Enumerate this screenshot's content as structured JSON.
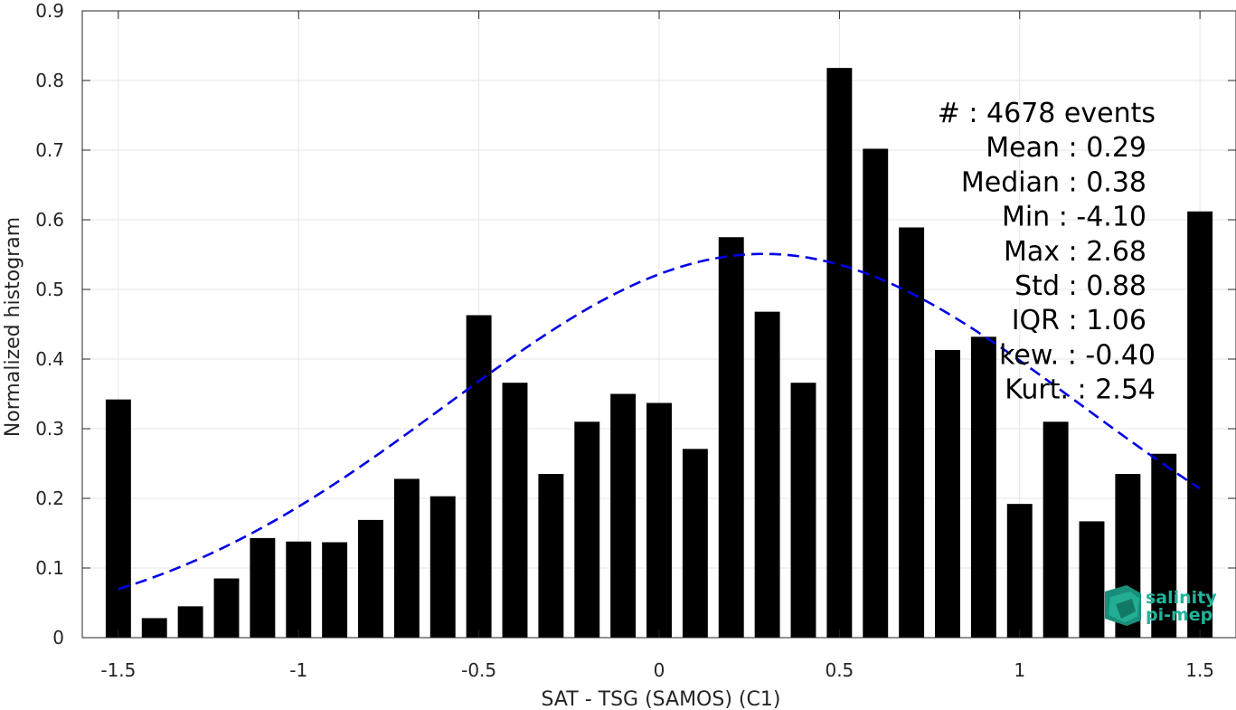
{
  "chart_data": {
    "type": "bar",
    "title": "",
    "xlabel": "SAT - TSG (SAMOS) (C1)",
    "ylabel": "Normalized histogram",
    "xlim": [
      -1.6,
      1.6
    ],
    "ylim": [
      0,
      0.9
    ],
    "x_ticks": [
      -1.5,
      -1,
      -0.5,
      0,
      0.5,
      1,
      1.5
    ],
    "x_tick_labels": [
      "-1.5",
      "-1",
      "-0.5",
      "0",
      "0.5",
      "1",
      "1.5"
    ],
    "y_ticks": [
      0,
      0.1,
      0.2,
      0.3,
      0.4,
      0.5,
      0.6,
      0.7,
      0.8,
      0.9
    ],
    "y_tick_labels": [
      "0",
      "0.1",
      "0.2",
      "0.3",
      "0.4",
      "0.5",
      "0.6",
      "0.7",
      "0.8",
      "0.9"
    ],
    "grid": true,
    "bar_width": 0.07,
    "bar_color": "#000000",
    "bins": [
      {
        "x": -1.5,
        "y": 0.342
      },
      {
        "x": -1.4,
        "y": 0.028
      },
      {
        "x": -1.3,
        "y": 0.045
      },
      {
        "x": -1.2,
        "y": 0.085
      },
      {
        "x": -1.1,
        "y": 0.143
      },
      {
        "x": -1.0,
        "y": 0.138
      },
      {
        "x": -0.9,
        "y": 0.137
      },
      {
        "x": -0.8,
        "y": 0.169
      },
      {
        "x": -0.7,
        "y": 0.228
      },
      {
        "x": -0.6,
        "y": 0.203
      },
      {
        "x": -0.5,
        "y": 0.463
      },
      {
        "x": -0.4,
        "y": 0.366
      },
      {
        "x": -0.3,
        "y": 0.235
      },
      {
        "x": -0.2,
        "y": 0.31
      },
      {
        "x": -0.1,
        "y": 0.35
      },
      {
        "x": 0.0,
        "y": 0.337
      },
      {
        "x": 0.1,
        "y": 0.271
      },
      {
        "x": 0.2,
        "y": 0.575
      },
      {
        "x": 0.3,
        "y": 0.468
      },
      {
        "x": 0.4,
        "y": 0.366
      },
      {
        "x": 0.5,
        "y": 0.818
      },
      {
        "x": 0.6,
        "y": 0.702
      },
      {
        "x": 0.7,
        "y": 0.589
      },
      {
        "x": 0.8,
        "y": 0.413
      },
      {
        "x": 0.9,
        "y": 0.432
      },
      {
        "x": 1.0,
        "y": 0.192
      },
      {
        "x": 1.1,
        "y": 0.31
      },
      {
        "x": 1.2,
        "y": 0.167
      },
      {
        "x": 1.3,
        "y": 0.235
      },
      {
        "x": 1.4,
        "y": 0.264
      },
      {
        "x": 1.5,
        "y": 0.612
      }
    ],
    "fit_curve": {
      "type": "gaussian",
      "style": "dashed",
      "color": "#0000e6",
      "mean": 0.29,
      "std": 0.88,
      "peak": 0.551,
      "x_range": [
        -1.5,
        1.5
      ]
    },
    "annotation": [
      "#  : 4678 events",
      "Mean : 0.29",
      "Median : 0.38",
      "Min : -4.10",
      "Max : 2.68",
      "Std : 0.88",
      "IQR : 1.06",
      "kew. : -0.40",
      "Kurt. : 2.54"
    ]
  },
  "logo": {
    "line1": "salinity",
    "line2": "pi-mep",
    "color": "#1fb59a"
  }
}
